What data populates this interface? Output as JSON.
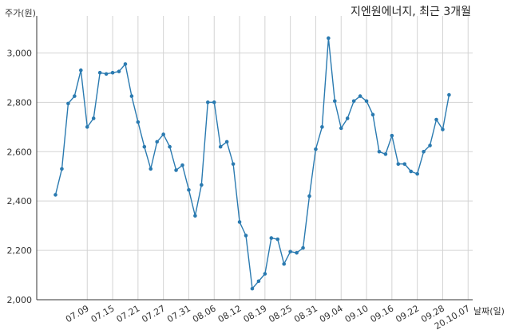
{
  "chart_data": {
    "type": "line",
    "title": "지엔원에너지, 최근 3개월",
    "xlabel": "날짜(일)",
    "ylabel": "주가(원)",
    "ylim": [
      2000,
      3150
    ],
    "yticks": [
      2000,
      2200,
      2400,
      2600,
      2800,
      3000
    ],
    "ytick_labels": [
      "2,000",
      "2,200",
      "2,400",
      "2,600",
      "2,800",
      "3,000"
    ],
    "xtick_labels": [
      "07.09",
      "07.15",
      "07.21",
      "07.27",
      "07.31",
      "08.06",
      "08.12",
      "08.19",
      "08.25",
      "08.31",
      "09.04",
      "09.10",
      "09.16",
      "09.22",
      "09.28",
      "20.10.07"
    ],
    "xtick_indices": [
      5,
      9,
      13,
      17,
      21,
      25,
      29,
      33,
      37,
      41,
      45,
      49,
      53,
      57,
      61,
      65
    ],
    "grid": true,
    "colors": {
      "line": "#2a7ab0",
      "grid": "#d3d3d3",
      "axis": "#333333"
    },
    "series": [
      {
        "values": [
          2425,
          2530,
          2795,
          2825,
          2930,
          2700,
          2735,
          2920,
          2915,
          2920,
          2925,
          2955,
          2825,
          2720,
          2620,
          2530,
          2640,
          2670,
          2620,
          2525,
          2545,
          2445,
          2340,
          2465,
          2800,
          2800,
          2620,
          2640,
          2550,
          2315,
          2260,
          2045,
          2075,
          2105,
          2250,
          2245,
          2145,
          2195,
          2190,
          2210,
          2420,
          2610,
          2700,
          3060,
          2805,
          2695,
          2735,
          2805,
          2825,
          2805,
          2750,
          2600,
          2590,
          2665,
          2550,
          2550,
          2520,
          2510,
          2600,
          2625,
          2730,
          2690,
          2830
        ]
      }
    ]
  }
}
